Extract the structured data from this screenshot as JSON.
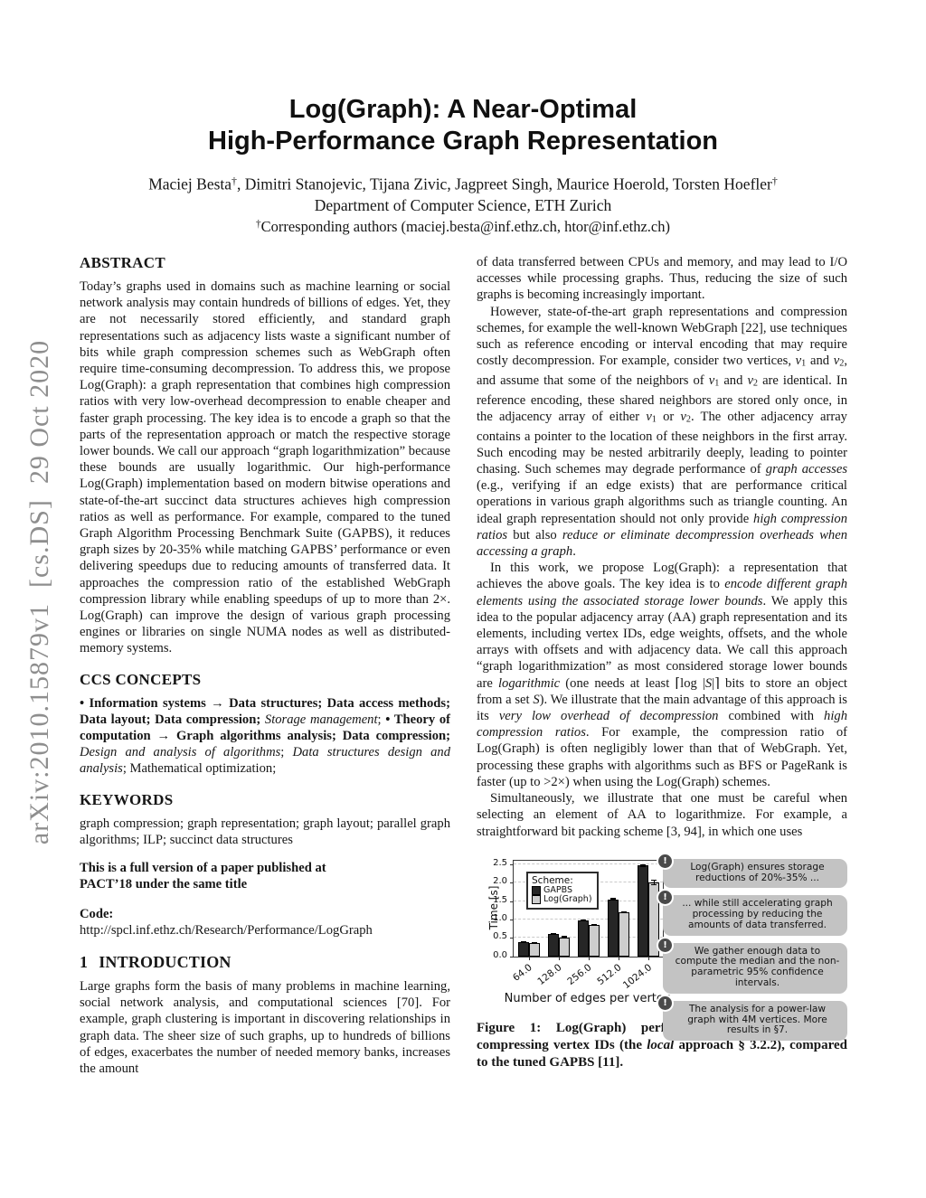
{
  "arxiv_banner": "arXiv:2010.15879v1  [cs.DS]  29 Oct 2020",
  "header": {
    "title_line1": "Log(Graph): A Near-Optimal",
    "title_line2": "High-Performance Graph Representation",
    "authors_rich": [
      {
        "t": "Maciej Besta"
      },
      {
        "t": "†",
        "s": "p"
      },
      {
        "t": ", Dimitri Stanojevic, Tijana Zivic, Jagpreet Singh, Maurice Hoerold, Torsten Hoefler"
      },
      {
        "t": "†",
        "s": "p"
      }
    ],
    "affiliation": "Department of Computer Science, ETH Zurich",
    "correspondence_rich": [
      {
        "t": "†",
        "s": "p"
      },
      {
        "t": "Corresponding authors (maciej.besta@inf.ethz.ch, htor@inf.ethz.ch)"
      }
    ]
  },
  "left_column": {
    "abstract_heading": "ABSTRACT",
    "abstract_text": "Today’s graphs used in domains such as machine learning or social network analysis may contain hundreds of billions of edges. Yet, they are not necessarily stored efficiently, and standard graph representations such as adjacency lists waste a significant number of bits while graph compression schemes such as WebGraph often require time-consuming decompression. To address this, we propose Log(Graph): a graph representation that combines high compression ratios with very low-overhead decompression to enable cheaper and faster graph processing. The key idea is to encode a graph so that the parts of the representation approach or match the respective storage lower bounds. We call our approach “graph logarithmization” because these bounds are usually logarithmic. Our high-performance Log(Graph) implementation based on modern bitwise operations and state-of-the-art succinct data structures achieves high compression ratios as well as performance. For example, compared to the tuned Graph Algorithm Processing Benchmark Suite (GAPBS), it reduces graph sizes by 20-35% while matching GAPBS’ performance or even delivering speedups due to reducing amounts of transferred data. It approaches the compression ratio of the established WebGraph compression library while enabling speedups of up to more than 2×. Log(Graph) can improve the design of various graph processing engines or libraries on single NUMA nodes as well as distributed-memory systems.",
    "ccs_heading": "CCS CONCEPTS",
    "ccs_rich": [
      {
        "t": "• ",
        "s": "b"
      },
      {
        "t": "Information systems",
        "s": "b"
      },
      {
        "t": " → "
      },
      {
        "t": "Data structures",
        "s": "b"
      },
      {
        "t": "; ",
        "s": "b"
      },
      {
        "t": "Data access methods",
        "s": "b"
      },
      {
        "t": "; ",
        "s": "b"
      },
      {
        "t": "Data layout",
        "s": "b"
      },
      {
        "t": "; ",
        "s": "b"
      },
      {
        "t": "Data compression",
        "s": "b"
      },
      {
        "t": "; ",
        "s": "b"
      },
      {
        "t": "Storage management",
        "s": "i"
      },
      {
        "t": "; "
      },
      {
        "t": "• ",
        "s": "b"
      },
      {
        "t": "Theory of computation",
        "s": "b"
      },
      {
        "t": " → "
      },
      {
        "t": "Graph algorithms analysis",
        "s": "b"
      },
      {
        "t": "; ",
        "s": "b"
      },
      {
        "t": "Data compression",
        "s": "b"
      },
      {
        "t": "; ",
        "s": "b"
      },
      {
        "t": "Design and analysis of algorithms",
        "s": "i"
      },
      {
        "t": "; "
      },
      {
        "t": "Data structures design and analysis",
        "s": "i"
      },
      {
        "t": "; "
      },
      {
        "t": "Mathematical optimization;"
      }
    ],
    "keywords_heading": "KEYWORDS",
    "keywords_text": "graph compression; graph representation; graph layout; parallel graph algorithms; ILP; succinct data structures",
    "note_lines": [
      "This is a full version of a paper published at",
      "PACT’18 under the same title"
    ],
    "code_label": "Code:",
    "code_url": "http://spcl.inf.ethz.ch/Research/Performance/LogGraph",
    "intro_number": "1",
    "intro_heading": "INTRODUCTION",
    "intro_text": "Large graphs form the basis of many problems in machine learning, social network analysis, and computational sciences [70]. For example, graph clustering is important in discovering relationships in graph data. The sheer size of such graphs, up to hundreds of billions of edges, exacerbates the number of needed memory banks, increases the amount"
  },
  "right_column": {
    "p1": "of data transferred between CPUs and memory, and may lead to I/O accesses while processing graphs. Thus, reducing the size of such graphs is becoming increasingly important.",
    "p2_rich": [
      {
        "t": "However, state-of-the-art graph representations and compression schemes, for example the well-known WebGraph [22], use techniques such as reference encoding or interval encoding that may require costly decompression. For example, consider two vertices, "
      },
      {
        "t": "v",
        "s": "i"
      },
      {
        "t": "1",
        "s": "d"
      },
      {
        "t": " and "
      },
      {
        "t": "v",
        "s": "i"
      },
      {
        "t": "2",
        "s": "d"
      },
      {
        "t": ", and assume that some of the neighbors of "
      },
      {
        "t": "v",
        "s": "i"
      },
      {
        "t": "1",
        "s": "d"
      },
      {
        "t": " and "
      },
      {
        "t": "v",
        "s": "i"
      },
      {
        "t": "2",
        "s": "d"
      },
      {
        "t": " are identical. In reference encoding, these shared neighbors are stored only once, in the adjacency array of either "
      },
      {
        "t": "v",
        "s": "i"
      },
      {
        "t": "1",
        "s": "d"
      },
      {
        "t": " or "
      },
      {
        "t": "v",
        "s": "i"
      },
      {
        "t": "2",
        "s": "d"
      },
      {
        "t": ". The other adjacency array contains a pointer to the location of these neighbors in the first array. Such encoding may be nested arbitrarily deeply, leading to pointer chasing. Such schemes may degrade performance of "
      },
      {
        "t": "graph accesses",
        "s": "i"
      },
      {
        "t": " (e.g., verifying if an edge exists) that are performance critical operations in various graph algorithms such as triangle counting. An ideal graph representation should not only provide "
      },
      {
        "t": "high compression ratios",
        "s": "i"
      },
      {
        "t": " but also "
      },
      {
        "t": "reduce or eliminate decompression overheads when accessing a graph",
        "s": "i"
      },
      {
        "t": "."
      }
    ],
    "p3_rich": [
      {
        "t": "In this work, we propose Log(Graph): a representation that achieves the above goals. The key idea is to "
      },
      {
        "t": "encode different graph elements using the associated storage lower bounds",
        "s": "i"
      },
      {
        "t": ". We apply this idea to the popular adjacency array (AA) graph representation and its elements, including vertex IDs, edge weights, offsets, and the whole arrays with offsets and with adjacency data. We call this approach “graph logarithmization” as most considered storage lower bounds are "
      },
      {
        "t": "logarithmic",
        "s": "i"
      },
      {
        "t": " (one needs at least ⌈log |"
      },
      {
        "t": "S",
        "s": "i"
      },
      {
        "t": "|⌉ bits to store an object from a set "
      },
      {
        "t": "S",
        "s": "i"
      },
      {
        "t": "). We illustrate that the main advantage of this approach is its "
      },
      {
        "t": "very low overhead of decompression",
        "s": "i"
      },
      {
        "t": " combined with "
      },
      {
        "t": "high compression ratios",
        "s": "i"
      },
      {
        "t": ". For example, the compression ratio of Log(Graph) is often negligibly lower than that of WebGraph. Yet, processing these graphs with algorithms such as BFS or PageRank is faster (up to >2×) when using the Log(Graph) schemes."
      }
    ],
    "p4": "Simultaneously, we illustrate that one must be careful when selecting an element of AA to logarithmize. For example, a straightforward bit packing scheme [3, 94], in which one uses"
  },
  "figure": {
    "callouts": [
      "Log(Graph) ensures storage reductions of 20%-35% ...",
      "... while still accelerating graph processing by reducing the amounts of data transferred.",
      "We gather enough data to compute the median and the non-parametric 95% confidence intervals.",
      "The analysis for a power-law graph with 4M vertices. More results in §7."
    ],
    "callout_icon": "!",
    "caption_rich": [
      {
        "t": "Figure 1: Log(Graph) performance with SSSP when compressing vertex IDs (the ",
        "s": "b"
      },
      {
        "t": "local",
        "s": "bi"
      },
      {
        "t": " approach § 3.2.2), compared to the tuned GAPBS [11].",
        "s": "b"
      }
    ]
  },
  "chart_data": {
    "type": "bar",
    "title": "",
    "xlabel": "Number of edges per vertex",
    "ylabel": "Time [s]",
    "legend_title": "Scheme:",
    "legend_position": "top-left inside plot",
    "grid": "horizontal dashed",
    "categories": [
      "64.0",
      "128.0",
      "256.0",
      "512.0",
      "1024.0"
    ],
    "series": [
      {
        "name": "GAPBS",
        "color": "#262626",
        "values": [
          0.38,
          0.6,
          0.98,
          1.55,
          2.46
        ],
        "errors": [
          0.01,
          0.01,
          0.02,
          0.02,
          0.03
        ]
      },
      {
        "name": "Log(Graph)",
        "color": "#cdcdcd",
        "values": [
          0.35,
          0.52,
          0.85,
          1.19,
          2.0
        ],
        "errors": [
          0.01,
          0.01,
          0.02,
          0.02,
          0.07
        ]
      }
    ],
    "ylim": [
      0,
      2.6
    ],
    "ytick_step": 0.5,
    "yticks": [
      "0.0",
      "0.5",
      "1.0",
      "1.5",
      "2.0",
      "2.5"
    ]
  },
  "colors": {
    "banner_gray": "#8e8e8e",
    "callout_bg": "#c3c3c3",
    "callout_icon_bg": "#4a4a4a",
    "bar_gapbs": "#262626",
    "bar_loggraph": "#cdcdcd",
    "text": "#161616"
  }
}
